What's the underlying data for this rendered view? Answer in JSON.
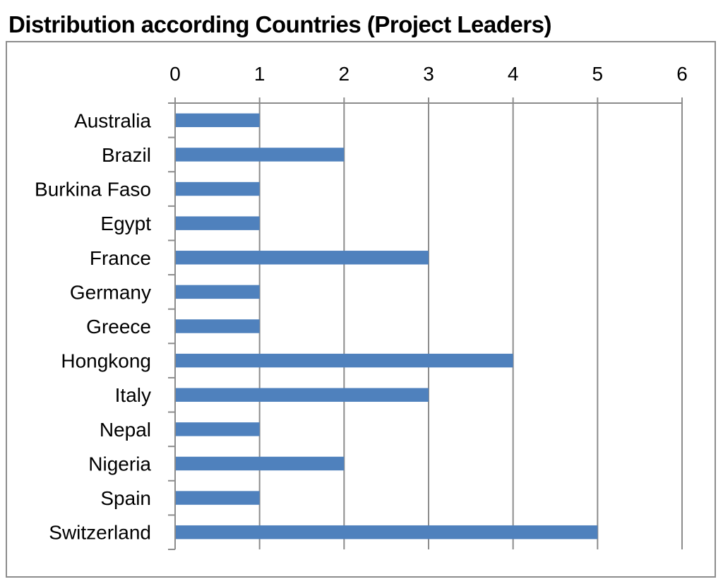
{
  "chart_data": {
    "type": "bar",
    "orientation": "horizontal",
    "title": "Distribution according Countries (Project Leaders)",
    "categories": [
      "Australia",
      "Brazil",
      "Burkina Faso",
      "Egypt",
      "France",
      "Germany",
      "Greece",
      "Hongkong",
      "Italy",
      "Nepal",
      "Nigeria",
      "Spain",
      "Switzerland"
    ],
    "values": [
      1,
      2,
      1,
      1,
      3,
      1,
      1,
      4,
      3,
      1,
      2,
      1,
      5
    ],
    "xlim": [
      0,
      6
    ],
    "xticks": [
      "0",
      "1",
      "2",
      "3",
      "4",
      "5",
      "6"
    ],
    "x_axis_position": "top",
    "grid": true,
    "legend": "none",
    "bar_color": "#4f81bd",
    "grid_color": "#8c8c8c"
  }
}
